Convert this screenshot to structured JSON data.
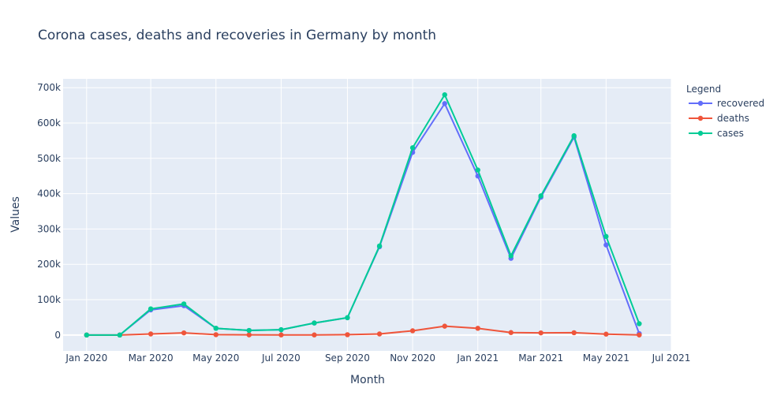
{
  "chart_data": {
    "type": "line",
    "title": "Corona cases, deaths and recoveries in Germany by month",
    "xlabel": "Month",
    "ylabel": "Values",
    "x": [
      "2020-01-01",
      "2020-02-01",
      "2020-03-01",
      "2020-04-01",
      "2020-05-01",
      "2020-06-01",
      "2020-07-01",
      "2020-08-01",
      "2020-09-01",
      "2020-10-01",
      "2020-11-01",
      "2020-12-01",
      "2021-01-01",
      "2021-02-01",
      "2021-03-01",
      "2021-04-01",
      "2021-05-01",
      "2021-06-01"
    ],
    "xlim": [
      "2019-12-10",
      "2021-07-01"
    ],
    "ylim": [
      -45000,
      725000
    ],
    "x_ticks": [
      {
        "date": "2020-01-01",
        "label": "Jan 2020"
      },
      {
        "date": "2020-03-01",
        "label": "Mar 2020"
      },
      {
        "date": "2020-05-01",
        "label": "May 2020"
      },
      {
        "date": "2020-07-01",
        "label": "Jul 2020"
      },
      {
        "date": "2020-09-01",
        "label": "Sep 2020"
      },
      {
        "date": "2020-11-01",
        "label": "Nov 2020"
      },
      {
        "date": "2021-01-01",
        "label": "Jan 2021"
      },
      {
        "date": "2021-03-01",
        "label": "Mar 2021"
      },
      {
        "date": "2021-05-01",
        "label": "May 2021"
      },
      {
        "date": "2021-07-01",
        "label": "Jul 2021"
      }
    ],
    "y_ticks": [
      {
        "value": 0,
        "label": "0"
      },
      {
        "value": 100000,
        "label": "100k"
      },
      {
        "value": 200000,
        "label": "200k"
      },
      {
        "value": 300000,
        "label": "300k"
      },
      {
        "value": 400000,
        "label": "400k"
      },
      {
        "value": 500000,
        "label": "500k"
      },
      {
        "value": 600000,
        "label": "600k"
      },
      {
        "value": 700000,
        "label": "700k"
      }
    ],
    "grid": true,
    "legend": {
      "title": "Legend",
      "placement": "top-right"
    },
    "series": [
      {
        "name": "recovered",
        "color": "#636efa",
        "values": [
          0,
          0,
          71000,
          83000,
          19000,
          13000,
          15000,
          34000,
          49000,
          250000,
          517000,
          655000,
          450000,
          217000,
          390000,
          560000,
          255000,
          4000
        ]
      },
      {
        "name": "deaths",
        "color": "#ef553b",
        "values": [
          0,
          0,
          3000,
          6000,
          1000,
          500,
          300,
          300,
          900,
          3000,
          12000,
          25000,
          19000,
          7000,
          6000,
          6500,
          2500,
          100
        ]
      },
      {
        "name": "cases",
        "color": "#00cc96",
        "values": [
          0,
          0,
          74000,
          88000,
          19000,
          13000,
          15000,
          34000,
          49000,
          252000,
          530000,
          680000,
          467000,
          224000,
          394000,
          564000,
          279000,
          32000
        ]
      }
    ]
  }
}
